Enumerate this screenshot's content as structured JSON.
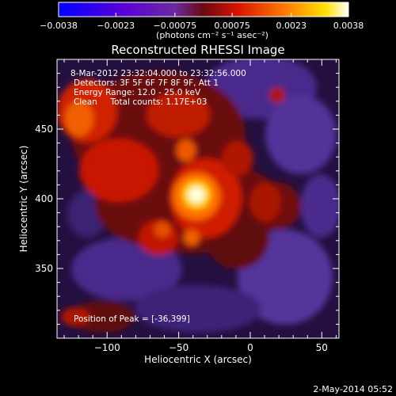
{
  "chart_data": {
    "type": "heatmap",
    "title": "Reconstructed RHESSI Image",
    "xlabel": "Heliocentric X (arcsec)",
    "ylabel": "Heliocentric Y (arcsec)",
    "x_ticks": [
      -100,
      -50,
      0,
      50
    ],
    "y_ticks": [
      350,
      400,
      450
    ],
    "xlim": [
      -135,
      62
    ],
    "ylim": [
      300,
      500
    ],
    "peak": [
      -36,
      399
    ],
    "colorbar": {
      "label": "(photons cm⁻² s⁻¹ asec⁻²)",
      "min": -0.0038,
      "max": 0.0038,
      "tick_labels": [
        "-0.0038",
        "-0.0023",
        "-0.00075",
        "0.00075",
        "0.0023",
        "0.0038"
      ],
      "tick_values": [
        -0.0038,
        -0.0023,
        -0.00075,
        0.00075,
        0.0023,
        0.0038
      ],
      "colors": [
        "#0000ff",
        "#6000d0",
        "#6a2aa0",
        "#7a1010",
        "#e01a00",
        "#ff8000",
        "#ffe000",
        "#ffffff"
      ]
    },
    "annotations": [
      "8-Mar-2012 23:32:04.000 to 23:32:56.000",
      "Detectors: 3F 5F 6F 7F 8F 9F, Att 1",
      "Energy Range: 12.0 - 25.0 keV",
      "Clean     Total counts: 1.17E+03",
      "Position of Peak = [-36,399]"
    ]
  },
  "footer": {
    "timestamp": "2-May-2014 05:52"
  }
}
